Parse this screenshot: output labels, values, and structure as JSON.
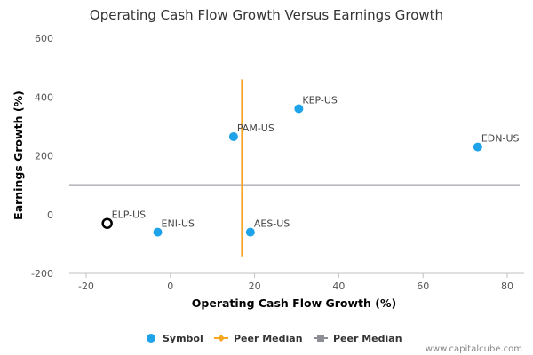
{
  "chart_data": {
    "type": "scatter",
    "title": "Operating Cash Flow Growth Versus Earnings Growth",
    "xlabel": "Operating Cash Flow Growth (%)",
    "ylabel": "Earnings Growth (%)",
    "xlim": [
      -24,
      84
    ],
    "ylim": [
      -200,
      600
    ],
    "x_ticks": [
      -20,
      0,
      20,
      40,
      60,
      80
    ],
    "y_ticks": [
      -200,
      0,
      200,
      400,
      600
    ],
    "grid": false,
    "series": [
      {
        "name": "Symbol",
        "color": "#1fa3e8",
        "points": [
          {
            "label": "KEP-US",
            "x": 30.5,
            "y": 360
          },
          {
            "label": "PAM-US",
            "x": 15,
            "y": 265
          },
          {
            "label": "EDN-US",
            "x": 73,
            "y": 230
          },
          {
            "label": "ENI-US",
            "x": -3,
            "y": -60
          },
          {
            "label": "AES-US",
            "x": 19,
            "y": -60
          }
        ]
      }
    ],
    "highlight": {
      "label": "ELP-US",
      "x": -15,
      "y": -30,
      "color": "#000000"
    },
    "peer_median_x": {
      "name": "Peer Median",
      "value": 17,
      "color": "#f5a623",
      "y_range": [
        -145,
        460
      ]
    },
    "peer_median_y": {
      "name": "Peer Median",
      "value": 100,
      "color": "#8e8e96"
    },
    "legend": {
      "position": "bottom",
      "items": [
        {
          "label": "Symbol",
          "kind": "dot",
          "color": "#1fa3e8"
        },
        {
          "label": "Peer Median",
          "kind": "line-diamond",
          "color": "#f5a623"
        },
        {
          "label": "Peer Median",
          "kind": "line-square",
          "color": "#8e8e96"
        }
      ]
    },
    "credit": "www.capitalcube.com"
  }
}
